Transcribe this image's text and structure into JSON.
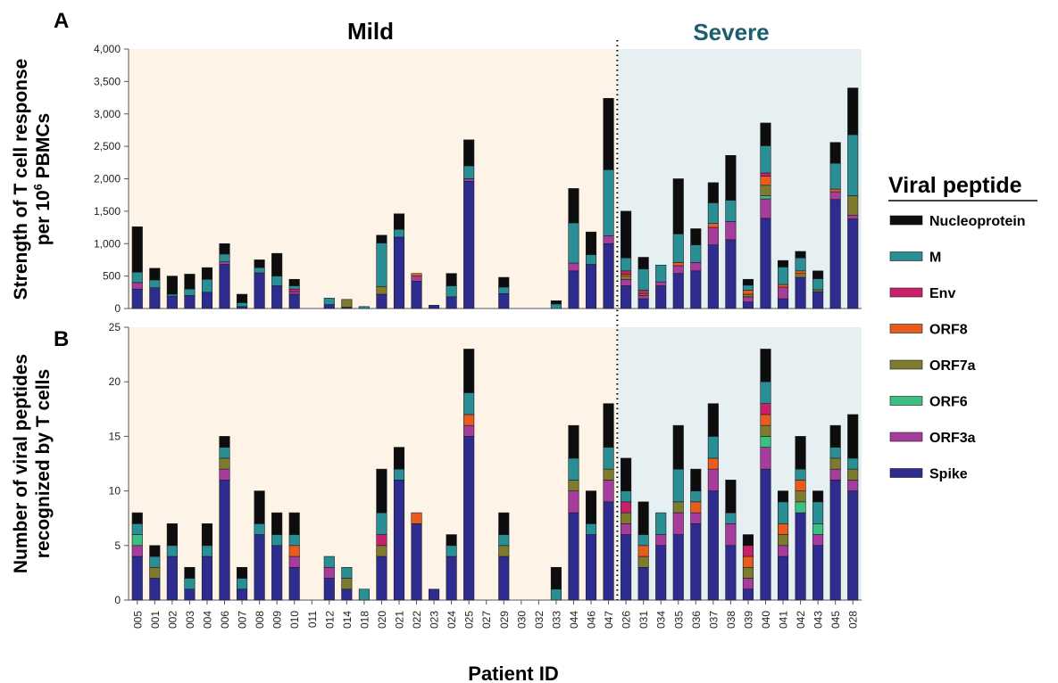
{
  "figure": {
    "panel_a_letter": "A",
    "panel_b_letter": "B",
    "group_mild": "Mild",
    "group_severe": "Severe",
    "xlabel": "Patient ID",
    "ylabel_a_line1": "Strength of T cell response",
    "ylabel_a_line2_pre": "per 10",
    "ylabel_a_line2_sup": "6",
    "ylabel_a_line2_post": " PBMCs",
    "ylabel_b_line1": "Number of viral peptides",
    "ylabel_b_line2": "recognized by T cells",
    "legend_title": "Viral peptide",
    "colors": {
      "mild_bg": "#fdf3e6",
      "severe_bg": "#e6eff1",
      "severe_title": "#1b5e6e"
    }
  },
  "chart_data": [
    {
      "type": "bar",
      "stacked": true,
      "panel": "A",
      "ylabel": "Strength of T cell response per 10^6 PBMCs",
      "ylim": [
        0,
        4000
      ],
      "yticks": [
        "0",
        "500",
        "1,000",
        "1,500",
        "2,000",
        "2,500",
        "3,000",
        "3,500",
        "4,000"
      ],
      "categories": [
        "005",
        "001",
        "002",
        "003",
        "004",
        "006",
        "007",
        "008",
        "009",
        "010",
        "011",
        "012",
        "014",
        "018",
        "020",
        "021",
        "022",
        "023",
        "024",
        "025",
        "027",
        "029",
        "030",
        "032",
        "033",
        "044",
        "046",
        "047",
        "026",
        "031",
        "034",
        "035",
        "036",
        "037",
        "038",
        "039",
        "040",
        "041",
        "042",
        "043",
        "045",
        "028"
      ],
      "groups": [
        {
          "name": "Mild",
          "start": 0,
          "end": 27
        },
        {
          "name": "Severe",
          "start": 28,
          "end": 41
        }
      ],
      "series": [
        {
          "name": "Spike",
          "color": "#2e2c8f",
          "values": [
            300,
            320,
            190,
            200,
            250,
            680,
            30,
            550,
            350,
            220,
            0,
            60,
            20,
            0,
            220,
            1100,
            420,
            50,
            180,
            1960,
            0,
            230,
            0,
            0,
            0,
            580,
            680,
            1000,
            350,
            150,
            350,
            540,
            580,
            980,
            1060,
            100,
            1390,
            150,
            480,
            260,
            1680,
            1380
          ]
        },
        {
          "name": "ORF3a",
          "color": "#a63c9c",
          "values": [
            100,
            0,
            0,
            0,
            0,
            40,
            0,
            0,
            0,
            40,
            0,
            0,
            0,
            0,
            0,
            0,
            80,
            0,
            0,
            40,
            0,
            0,
            0,
            0,
            0,
            120,
            0,
            120,
            100,
            50,
            60,
            120,
            130,
            270,
            280,
            80,
            300,
            180,
            0,
            0,
            120,
            60
          ]
        },
        {
          "name": "ORF6",
          "color": "#3cbf83",
          "values": [
            0,
            0,
            0,
            0,
            0,
            0,
            0,
            0,
            0,
            0,
            0,
            0,
            0,
            0,
            0,
            0,
            0,
            0,
            0,
            0,
            0,
            0,
            0,
            0,
            0,
            0,
            0,
            0,
            0,
            0,
            0,
            0,
            0,
            0,
            0,
            0,
            50,
            0,
            0,
            0,
            0,
            0
          ]
        },
        {
          "name": "ORF7a",
          "color": "#7e7a2e",
          "values": [
            0,
            0,
            0,
            0,
            0,
            0,
            0,
            0,
            0,
            0,
            0,
            0,
            120,
            0,
            120,
            0,
            0,
            0,
            0,
            0,
            0,
            0,
            0,
            0,
            0,
            0,
            0,
            0,
            50,
            30,
            0,
            0,
            0,
            0,
            0,
            40,
            160,
            0,
            60,
            30,
            0,
            300
          ]
        },
        {
          "name": "ORF8",
          "color": "#e85d1e",
          "values": [
            0,
            0,
            0,
            0,
            0,
            0,
            0,
            0,
            0,
            0,
            0,
            0,
            0,
            0,
            0,
            0,
            40,
            0,
            0,
            0,
            0,
            0,
            0,
            0,
            0,
            0,
            0,
            0,
            30,
            0,
            0,
            50,
            0,
            60,
            0,
            60,
            140,
            40,
            40,
            0,
            40,
            0
          ]
        },
        {
          "name": "Env",
          "color": "#c8206a",
          "values": [
            0,
            0,
            0,
            0,
            0,
            0,
            0,
            0,
            0,
            40,
            0,
            0,
            0,
            0,
            0,
            0,
            0,
            0,
            0,
            0,
            0,
            0,
            0,
            0,
            0,
            0,
            0,
            0,
            50,
            50,
            0,
            0,
            0,
            0,
            0,
            0,
            50,
            0,
            0,
            0,
            0,
            0
          ]
        },
        {
          "name": "M",
          "color": "#2a8f95",
          "values": [
            160,
            120,
            30,
            100,
            200,
            120,
            60,
            80,
            150,
            50,
            0,
            100,
            0,
            30,
            670,
            120,
            0,
            0,
            170,
            200,
            0,
            100,
            0,
            0,
            70,
            620,
            150,
            1020,
            200,
            330,
            260,
            440,
            270,
            320,
            330,
            80,
            420,
            270,
            200,
            170,
            400,
            940
          ]
        },
        {
          "name": "Nucleoprotein",
          "color": "#0d0d0d",
          "values": [
            700,
            180,
            280,
            230,
            180,
            160,
            130,
            120,
            350,
            100,
            0,
            0,
            0,
            0,
            120,
            240,
            0,
            0,
            190,
            400,
            0,
            150,
            0,
            0,
            50,
            530,
            350,
            1100,
            720,
            180,
            0,
            850,
            250,
            310,
            690,
            90,
            350,
            100,
            100,
            120,
            320,
            720
          ]
        }
      ]
    },
    {
      "type": "bar",
      "stacked": true,
      "panel": "B",
      "ylabel": "Number of viral peptides recognized by T cells",
      "ylim": [
        0,
        25
      ],
      "yticks": [
        "0",
        "5",
        "10",
        "15",
        "20",
        "25"
      ],
      "categories": [
        "005",
        "001",
        "002",
        "003",
        "004",
        "006",
        "007",
        "008",
        "009",
        "010",
        "011",
        "012",
        "014",
        "018",
        "020",
        "021",
        "022",
        "023",
        "024",
        "025",
        "027",
        "029",
        "030",
        "032",
        "033",
        "044",
        "046",
        "047",
        "026",
        "031",
        "034",
        "035",
        "036",
        "037",
        "038",
        "039",
        "040",
        "041",
        "042",
        "043",
        "045",
        "028"
      ],
      "series": [
        {
          "name": "Spike",
          "color": "#2e2c8f",
          "values": [
            4,
            2,
            4,
            1,
            4,
            11,
            1,
            6,
            5,
            3,
            0,
            2,
            1,
            0,
            4,
            11,
            7,
            1,
            4,
            15,
            0,
            4,
            0,
            0,
            0,
            8,
            6,
            9,
            6,
            3,
            5,
            6,
            7,
            10,
            5,
            1,
            12,
            4,
            8,
            5,
            11,
            10
          ]
        },
        {
          "name": "ORF3a",
          "color": "#a63c9c",
          "values": [
            1,
            0,
            0,
            0,
            0,
            1,
            0,
            0,
            0,
            1,
            0,
            1,
            0,
            0,
            0,
            0,
            0,
            0,
            0,
            1,
            0,
            0,
            0,
            0,
            0,
            2,
            0,
            2,
            1,
            0,
            1,
            2,
            1,
            2,
            2,
            1,
            2,
            1,
            0,
            1,
            1,
            1
          ]
        },
        {
          "name": "ORF6",
          "color": "#3cbf83",
          "values": [
            1,
            0,
            0,
            0,
            0,
            0,
            0,
            0,
            0,
            0,
            0,
            0,
            0,
            0,
            0,
            0,
            0,
            0,
            0,
            0,
            0,
            0,
            0,
            0,
            0,
            0,
            0,
            0,
            0,
            0,
            0,
            0,
            0,
            0,
            0,
            0,
            1,
            0,
            1,
            1,
            0,
            0
          ]
        },
        {
          "name": "ORF7a",
          "color": "#7e7a2e",
          "values": [
            0,
            1,
            0,
            0,
            0,
            1,
            0,
            0,
            0,
            0,
            0,
            0,
            1,
            0,
            1,
            0,
            0,
            0,
            0,
            0,
            0,
            1,
            0,
            0,
            0,
            1,
            0,
            1,
            1,
            1,
            0,
            1,
            0,
            0,
            0,
            1,
            1,
            1,
            1,
            0,
            1,
            1
          ]
        },
        {
          "name": "ORF8",
          "color": "#e85d1e",
          "values": [
            0,
            0,
            0,
            0,
            0,
            0,
            0,
            0,
            0,
            1,
            0,
            0,
            0,
            0,
            0,
            0,
            1,
            0,
            0,
            1,
            0,
            0,
            0,
            0,
            0,
            0,
            0,
            0,
            0,
            1,
            0,
            0,
            1,
            1,
            0,
            1,
            1,
            1,
            1,
            0,
            0,
            0
          ]
        },
        {
          "name": "Env",
          "color": "#c8206a",
          "values": [
            0,
            0,
            0,
            0,
            0,
            0,
            0,
            0,
            0,
            0,
            0,
            0,
            0,
            0,
            1,
            0,
            0,
            0,
            0,
            0,
            0,
            0,
            0,
            0,
            0,
            0,
            0,
            0,
            1,
            0,
            0,
            0,
            0,
            0,
            0,
            1,
            1,
            0,
            0,
            0,
            0,
            0
          ]
        },
        {
          "name": "M",
          "color": "#2a8f95",
          "values": [
            1,
            1,
            1,
            1,
            1,
            1,
            1,
            1,
            1,
            1,
            0,
            1,
            1,
            1,
            2,
            1,
            0,
            0,
            1,
            2,
            0,
            1,
            0,
            0,
            1,
            2,
            1,
            2,
            1,
            1,
            2,
            3,
            1,
            2,
            1,
            0,
            2,
            2,
            1,
            2,
            1,
            1
          ]
        },
        {
          "name": "Nucleoprotein",
          "color": "#0d0d0d",
          "values": [
            1,
            1,
            2,
            1,
            2,
            1,
            1,
            3,
            2,
            2,
            0,
            0,
            0,
            0,
            4,
            2,
            0,
            0,
            1,
            4,
            0,
            2,
            0,
            0,
            2,
            3,
            3,
            4,
            3,
            3,
            0,
            4,
            2,
            3,
            3,
            1,
            3,
            1,
            3,
            1,
            2,
            4
          ]
        }
      ]
    }
  ],
  "legend": {
    "title": "Viral peptide",
    "items": [
      {
        "name": "Nucleoprotein",
        "color": "#0d0d0d"
      },
      {
        "name": "M",
        "color": "#2a8f95"
      },
      {
        "name": "Env",
        "color": "#c8206a"
      },
      {
        "name": "ORF8",
        "color": "#e85d1e"
      },
      {
        "name": "ORF7a",
        "color": "#7e7a2e"
      },
      {
        "name": "ORF6",
        "color": "#3cbf83"
      },
      {
        "name": "ORF3a",
        "color": "#a63c9c"
      },
      {
        "name": "Spike",
        "color": "#2e2c8f"
      }
    ]
  }
}
